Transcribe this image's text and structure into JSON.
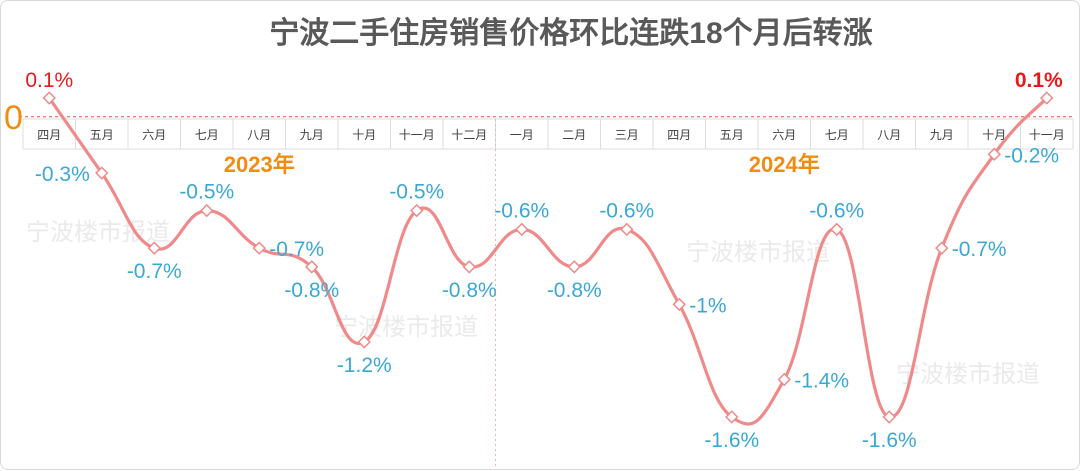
{
  "chart_data": {
    "type": "line",
    "title": "宁波二手住房销售价格环比连跌18个月后转涨",
    "zero_label": "0",
    "categories": [
      "四月",
      "五月",
      "六月",
      "七月",
      "八月",
      "九月",
      "十月",
      "十一月",
      "十二月",
      "一月",
      "二月",
      "三月",
      "四月",
      "五月",
      "六月",
      "七月",
      "八月",
      "九月",
      "十月",
      "十一月"
    ],
    "year_labels": [
      {
        "text": "2023年",
        "first_index": 0,
        "last_index": 8
      },
      {
        "text": "2024年",
        "first_index": 9,
        "last_index": 19
      }
    ],
    "series": [
      {
        "values": [
          0.1,
          -0.3,
          -0.7,
          -0.5,
          -0.7,
          -0.8,
          -1.2,
          -0.5,
          -0.8,
          -0.6,
          -0.8,
          -0.6,
          -1.0,
          -1.6,
          -1.4,
          -0.6,
          -1.6,
          -0.7,
          -0.2,
          0.1
        ],
        "labels": [
          "0.1%",
          "-0.3%",
          "-0.7%",
          "-0.5%",
          "-0.7%",
          "-0.8%",
          "-1.2%",
          "-0.5%",
          "-0.8%",
          "-0.6%",
          "-0.8%",
          "-0.6%",
          "-1%",
          "-1.6%",
          "-1.4%",
          "-0.6%",
          "-1.6%",
          "-0.7%",
          "-0.2%",
          "0.1%"
        ]
      }
    ],
    "ylim": [
      -1.6,
      0.1
    ],
    "label_positions": [
      "above",
      "left",
      "below",
      "above",
      "right",
      "below",
      "below",
      "above",
      "below",
      "above",
      "below",
      "above",
      "right",
      "below",
      "right",
      "above",
      "below",
      "right",
      "right",
      "above"
    ],
    "watermark": "宁波楼市报道",
    "colors": {
      "line": "#f08a8a",
      "label_negative": "#3aa8d6",
      "label_positive": "#e8191b",
      "year_label": "#f28c0f",
      "zero_label": "#f28c0f",
      "zero_line": "#e05050",
      "axis_band": "#dedede",
      "title": "#595959"
    }
  }
}
